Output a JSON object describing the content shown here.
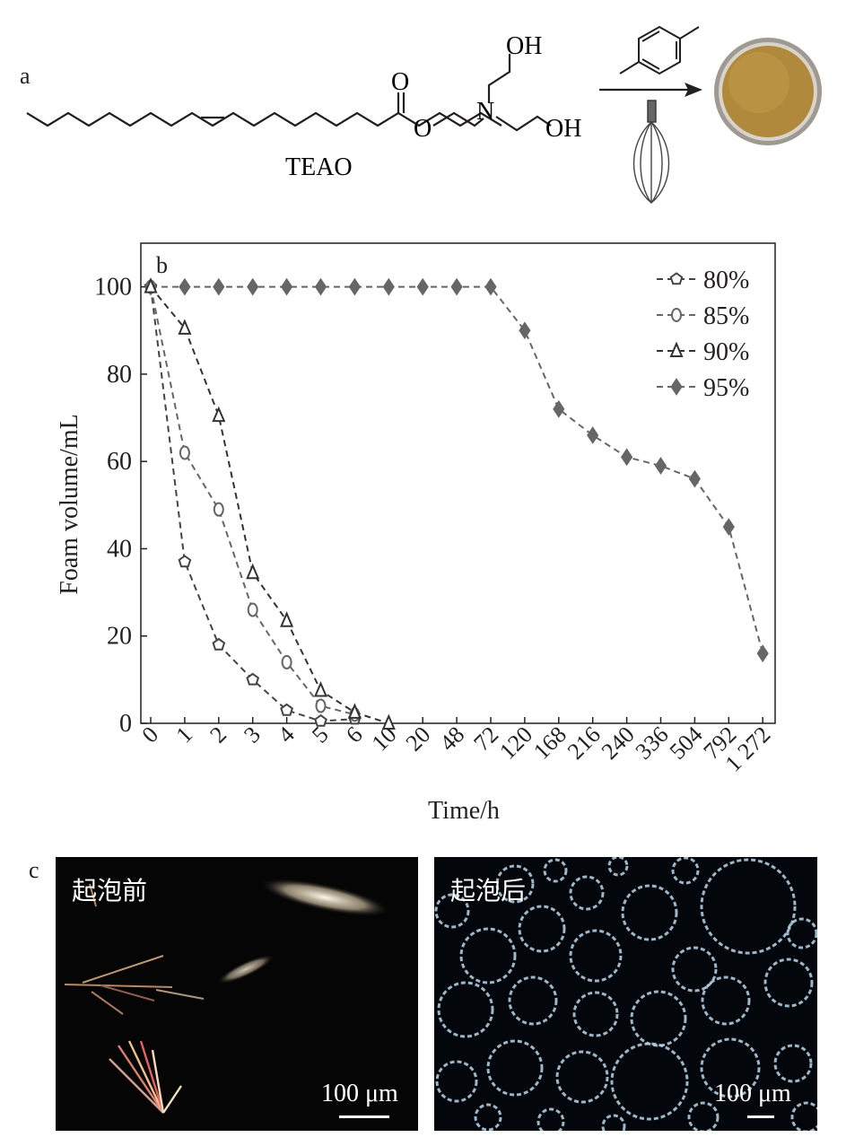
{
  "panel_labels": {
    "a": "a",
    "b": "b",
    "c": "c"
  },
  "scheme": {
    "compound_name": "TEAO",
    "atom_labels": {
      "carbonyl_O": "O",
      "ester_O": "O",
      "amine_N": "N",
      "hydroxyl_top": "OH",
      "hydroxyl_right": "OH"
    },
    "foam_color": "#b0893c",
    "icons": [
      "p-xylene-structure-icon",
      "reaction-arrow-icon",
      "whisk-icon",
      "foam-dish-image"
    ]
  },
  "chart_data": {
    "type": "line",
    "panel_label": "b",
    "xlabel": "Time/h",
    "ylabel": "Foam volume/mL",
    "categories": [
      "0",
      "1",
      "2",
      "3",
      "4",
      "5",
      "6",
      "10",
      "20",
      "48",
      "72",
      "120",
      "168",
      "216",
      "240",
      "336",
      "504",
      "792",
      "1 272"
    ],
    "ylim": [
      0,
      110
    ],
    "yticks": [
      0,
      20,
      40,
      60,
      80,
      100
    ],
    "grid": false,
    "legend_position": "top-right",
    "series": [
      {
        "name": "80%",
        "marker": "pentagon",
        "color": "#444444",
        "values": [
          100,
          37,
          18,
          10,
          3,
          0.5,
          1,
          null,
          null,
          null,
          null,
          null,
          null,
          null,
          null,
          null,
          null,
          null,
          null
        ]
      },
      {
        "name": "85%",
        "marker": "circle",
        "color": "#666666",
        "values": [
          100,
          62,
          49,
          26,
          14,
          4,
          2,
          null,
          null,
          null,
          null,
          null,
          null,
          null,
          null,
          null,
          null,
          null,
          null
        ]
      },
      {
        "name": "90%",
        "marker": "triangle",
        "color": "#333333",
        "values": [
          100,
          90.5,
          70.5,
          34.5,
          23.5,
          7.5,
          2.5,
          0,
          null,
          null,
          null,
          null,
          null,
          null,
          null,
          null,
          null,
          null,
          null
        ]
      },
      {
        "name": "95%",
        "marker": "diamond",
        "color": "#666666",
        "values": [
          100,
          100,
          100,
          100,
          100,
          100,
          100,
          100,
          100,
          100,
          100,
          90,
          72,
          66,
          61,
          59,
          56,
          45,
          16
        ]
      }
    ]
  },
  "micrographs": [
    {
      "label": "起泡前",
      "scalebar": "100 μm"
    },
    {
      "label": "起泡后",
      "scalebar": "100 μm"
    }
  ]
}
